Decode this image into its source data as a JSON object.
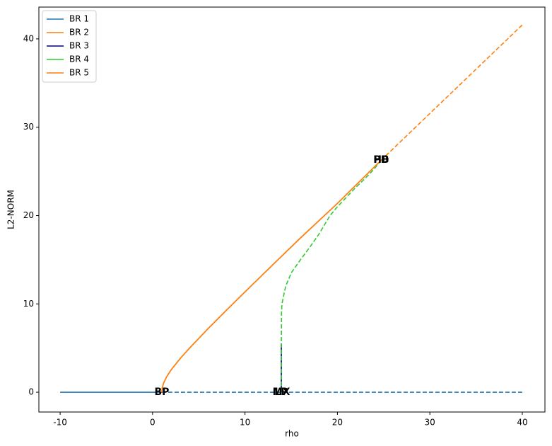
{
  "chart_data": {
    "type": "line",
    "x_label": "rho",
    "y_label": "L2-NORM",
    "xlim": [
      -12.3,
      42.45
    ],
    "ylim": [
      -2.24,
      43.6
    ],
    "xticks": [
      -10,
      0,
      10,
      20,
      30,
      40
    ],
    "yticks": [
      0,
      10,
      20,
      30,
      40
    ],
    "legend": "upper left",
    "series": [
      {
        "name": "BR 1",
        "color": "#1f77b4",
        "segments": [
          {
            "style": "solid",
            "x": [
              -10,
              1
            ],
            "values": [
              0,
              0
            ]
          },
          {
            "style": "dashed",
            "x": [
              1,
              40
            ],
            "values": [
              0,
              0
            ]
          }
        ]
      },
      {
        "name": "BR 2",
        "color": "#ff7f0e",
        "segments": [
          {
            "style": "solid",
            "x": [
              1,
              1.05,
              1.2,
              1.5,
              2,
              3,
              4,
              6,
              8,
              10,
              13,
              16,
              20,
              24.74
            ],
            "values": [
              0,
              0.519,
              1.052,
              1.708,
              2.517,
              3.83,
              5.0,
              7.188,
              9.292,
              11.358,
              14.422,
              17.464,
              21.378,
              26.272
            ]
          },
          {
            "style": "dashed",
            "x": [
              24.74,
              30,
              35,
              40
            ],
            "values": [
              26.272,
              31.554,
              36.569,
              41.581
            ]
          }
        ]
      },
      {
        "name": "BR 3",
        "color": "#000080",
        "segments": [
          {
            "style": "solid",
            "x": [
              13.93,
              13.93
            ],
            "values": [
              0,
              5.5
            ]
          }
        ]
      },
      {
        "name": "BR 4",
        "color": "#2ecc2e",
        "segments": [
          {
            "style": "dashed",
            "x": [
              13.93,
              13.93,
              13.95,
              14.0,
              14.4,
              15,
              16,
              17,
              18,
              19.2,
              20,
              21,
              22,
              23,
              24,
              24.74
            ],
            "values": [
              0,
              5,
              9,
              10,
              12,
              13.5,
              15,
              16.4,
              17.9,
              20,
              21,
              22.1,
              23.2,
              24.2,
              25.3,
              26.272
            ]
          }
        ]
      },
      {
        "name": "BR 5",
        "color": "#ff7f0e",
        "segments": [
          {
            "style": "solid",
            "x": [
              1,
              1.05,
              1.2,
              1.5,
              2,
              3,
              4,
              6,
              8,
              10,
              13,
              16,
              20,
              24.74
            ],
            "values": [
              0,
              0.519,
              1.052,
              1.708,
              2.517,
              3.83,
              5.0,
              7.188,
              9.292,
              11.358,
              14.422,
              17.464,
              21.378,
              26.272
            ]
          }
        ]
      }
    ],
    "annotations": [
      {
        "text": "BP",
        "x": 1,
        "y": 0
      },
      {
        "text": "MX",
        "x": 13.93,
        "y": 0
      },
      {
        "text": "LP",
        "x": 13.93,
        "y": 0
      },
      {
        "text": "HB",
        "x": 24.74,
        "y": 26.272
      },
      {
        "text": "PD",
        "x": 24.74,
        "y": 26.272
      }
    ]
  }
}
